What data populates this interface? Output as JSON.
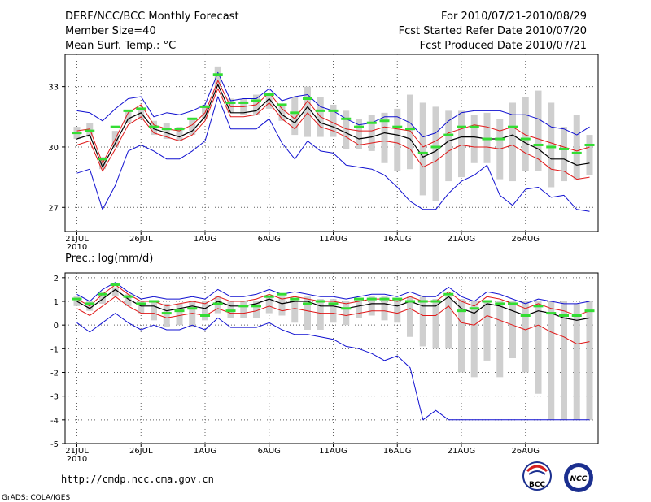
{
  "header": {
    "title": "DERF/NCC/BCC Monthly Forecast",
    "member_size": "Member Size=40",
    "forecast_period": "For 2010/07/21-2010/08/29",
    "started_refer": "Fcst Started Refer Date 2010/07/20",
    "produced_date": "Fcst Produced Date 2010/07/21"
  },
  "footer": {
    "url": "http://cmdp.ncc.cma.gov.cn",
    "grads": "GrADS: COLA/IGES",
    "logo_bcc": "BCC",
    "logo_ncc": "NCC"
  },
  "colors": {
    "envelope": "#1010d0",
    "spread": "#e01818",
    "mean": "#000000",
    "marker": "#33dd33",
    "box": "#cfcfcf",
    "grid": "#606060"
  },
  "chart_data": [
    {
      "type": "line",
      "title": "Mean Surf. Temp.: °C",
      "ylim": [
        25.8,
        34.6
      ],
      "yticks": [
        27,
        30,
        33
      ],
      "ytick_labels": [
        "27",
        "30",
        "33"
      ],
      "xticks": [
        1,
        6,
        11,
        16,
        21,
        26,
        31,
        36
      ],
      "xtick_labels": [
        "21JUL",
        "26JUL",
        "1AUG",
        "6AUG",
        "11AUG",
        "16AUG",
        "21AUG",
        "26AUG"
      ],
      "first_year": "2010",
      "series": [
        {
          "name": "max",
          "values": [
            31.8,
            31.7,
            31.3,
            31.9,
            32.4,
            32.5,
            31.5,
            31.7,
            31.6,
            31.8,
            32.1,
            33.7,
            32.3,
            32.4,
            32.4,
            32.9,
            32.3,
            32.5,
            32.6,
            32.0,
            31.8,
            31.4,
            31.1,
            31.2,
            31.5,
            31.5,
            31.2,
            30.5,
            30.7,
            31.3,
            31.7,
            31.8,
            31.8,
            31.8,
            31.6,
            31.6,
            31.4,
            31.0,
            30.9,
            30.6,
            31.0
          ]
        },
        {
          "name": "upper",
          "values": [
            30.8,
            30.9,
            29.2,
            30.4,
            31.7,
            32.1,
            31.1,
            30.9,
            30.8,
            31.1,
            31.7,
            33.3,
            32.0,
            32.0,
            32.1,
            32.7,
            31.9,
            31.4,
            32.3,
            31.5,
            31.2,
            30.9,
            30.8,
            30.8,
            31.0,
            30.9,
            30.8,
            30.0,
            30.3,
            30.7,
            30.9,
            31.1,
            31.0,
            30.8,
            31.0,
            30.6,
            30.4,
            30.2,
            30.0,
            29.8,
            30.0
          ]
        },
        {
          "name": "mean",
          "values": [
            30.4,
            30.6,
            29.0,
            30.2,
            31.4,
            31.7,
            30.9,
            30.7,
            30.5,
            30.8,
            31.5,
            33.1,
            31.7,
            31.7,
            31.8,
            32.4,
            31.6,
            31.2,
            32.0,
            31.2,
            31.0,
            30.7,
            30.4,
            30.5,
            30.7,
            30.6,
            30.4,
            29.5,
            29.8,
            30.3,
            30.5,
            30.5,
            30.4,
            30.4,
            30.6,
            30.2,
            29.9,
            29.4,
            29.4,
            29.1,
            29.2
          ]
        },
        {
          "name": "lower",
          "values": [
            30.1,
            30.3,
            28.8,
            29.9,
            31.1,
            31.5,
            30.7,
            30.5,
            30.3,
            30.6,
            31.3,
            32.9,
            31.5,
            31.5,
            31.6,
            32.2,
            31.4,
            30.9,
            31.7,
            31.0,
            30.8,
            30.5,
            30.1,
            30.2,
            30.3,
            30.2,
            29.9,
            29.0,
            29.3,
            29.8,
            30.1,
            30.0,
            30.0,
            29.9,
            30.1,
            29.7,
            29.4,
            28.9,
            28.8,
            28.4,
            28.5
          ]
        },
        {
          "name": "min",
          "values": [
            28.7,
            28.9,
            26.9,
            28.1,
            29.8,
            30.1,
            29.8,
            29.4,
            29.4,
            29.8,
            30.3,
            32.5,
            30.9,
            30.9,
            30.9,
            31.4,
            30.2,
            29.4,
            30.3,
            29.8,
            29.7,
            29.1,
            29.0,
            28.9,
            28.6,
            28.0,
            27.3,
            26.9,
            26.9,
            27.7,
            28.3,
            28.6,
            29.1,
            27.6,
            27.1,
            27.9,
            28.0,
            27.5,
            27.6,
            26.9,
            26.8
          ]
        },
        {
          "name": "marker",
          "values": [
            30.7,
            30.8,
            29.4,
            31.0,
            31.8,
            31.9,
            31.0,
            30.9,
            30.9,
            31.4,
            32.0,
            33.6,
            32.2,
            32.2,
            32.3,
            32.6,
            32.1,
            31.7,
            32.4,
            31.8,
            31.8,
            31.4,
            31.0,
            31.2,
            31.3,
            31.0,
            30.9,
            29.7,
            30.0,
            30.6,
            31.0,
            31.0,
            30.4,
            30.4,
            31.0,
            30.4,
            30.1,
            30.0,
            29.9,
            29.7,
            30.1
          ]
        },
        {
          "name": "box_top",
          "values": [
            31.0,
            31.2,
            29.5,
            30.8,
            31.8,
            31.9,
            31.3,
            31.2,
            31.0,
            31.4,
            32.1,
            34.0,
            32.4,
            32.4,
            32.6,
            32.7,
            32.1,
            32.5,
            33.0,
            32.5,
            32.1,
            31.8,
            31.4,
            31.6,
            31.7,
            31.9,
            32.6,
            32.2,
            32.0,
            31.8,
            31.8,
            31.6,
            31.7,
            31.4,
            32.2,
            32.5,
            32.8,
            32.2,
            31.0,
            31.6,
            30.6
          ]
        },
        {
          "name": "box_bottom",
          "values": [
            30.4,
            30.5,
            28.9,
            30.0,
            31.2,
            31.4,
            30.6,
            30.4,
            30.3,
            30.6,
            31.4,
            33.0,
            31.7,
            31.6,
            31.6,
            31.9,
            31.3,
            30.6,
            30.5,
            30.5,
            30.5,
            29.9,
            29.9,
            29.8,
            29.2,
            28.8,
            28.9,
            27.6,
            27.3,
            28.3,
            28.5,
            29.2,
            29.2,
            28.4,
            28.3,
            28.8,
            28.8,
            28.0,
            28.3,
            28.4,
            28.6
          ]
        }
      ]
    },
    {
      "type": "line",
      "title": "Prec.: log(mm/d)",
      "ylim": [
        -5,
        2.2
      ],
      "yticks": [
        -5,
        -4,
        -3,
        -2,
        -1,
        0,
        1,
        2
      ],
      "ytick_labels": [
        "-5",
        "-4",
        "-3",
        "-2",
        "-1",
        "0",
        "1",
        "2"
      ],
      "xticks": [
        1,
        6,
        11,
        16,
        21,
        26,
        31,
        36
      ],
      "xtick_labels": [
        "21JUL",
        "26JUL",
        "1AUG",
        "6AUG",
        "11AUG",
        "16AUG",
        "21AUG",
        "26AUG"
      ],
      "first_year": "2010",
      "series": [
        {
          "name": "max",
          "values": [
            1.3,
            1.0,
            1.5,
            1.8,
            1.4,
            1.1,
            1.2,
            1.1,
            1.1,
            1.2,
            1.1,
            1.5,
            1.2,
            1.2,
            1.3,
            1.5,
            1.3,
            1.4,
            1.3,
            1.2,
            1.2,
            1.1,
            1.2,
            1.3,
            1.3,
            1.2,
            1.4,
            1.2,
            1.2,
            1.6,
            1.2,
            1.0,
            1.4,
            1.3,
            1.1,
            0.9,
            1.1,
            1.0,
            0.9,
            0.9,
            1.0
          ]
        },
        {
          "name": "upper",
          "values": [
            1.1,
            0.8,
            1.3,
            1.7,
            1.3,
            1.0,
            1.0,
            0.8,
            0.9,
            1.0,
            0.9,
            1.2,
            1.0,
            1.0,
            1.1,
            1.3,
            1.1,
            1.2,
            1.1,
            1.0,
            1.0,
            0.9,
            1.0,
            1.1,
            1.1,
            1.0,
            1.2,
            1.0,
            1.0,
            1.4,
            1.0,
            0.8,
            1.2,
            1.1,
            0.9,
            0.7,
            0.9,
            0.7,
            0.6,
            0.4,
            0.6
          ]
        },
        {
          "name": "mean",
          "values": [
            1.0,
            0.7,
            1.1,
            1.5,
            1.1,
            0.8,
            0.8,
            0.6,
            0.7,
            0.8,
            0.7,
            1.0,
            0.8,
            0.8,
            0.9,
            1.1,
            0.9,
            1.0,
            1.0,
            0.8,
            0.8,
            0.7,
            0.8,
            0.9,
            0.9,
            0.8,
            1.0,
            0.8,
            0.8,
            1.2,
            0.7,
            0.5,
            0.9,
            0.8,
            0.6,
            0.4,
            0.6,
            0.5,
            0.3,
            0.2,
            0.3
          ]
        },
        {
          "name": "lower",
          "values": [
            0.7,
            0.4,
            0.8,
            1.2,
            0.8,
            0.5,
            0.5,
            0.3,
            0.4,
            0.5,
            0.4,
            0.7,
            0.5,
            0.5,
            0.6,
            0.8,
            0.6,
            0.7,
            0.6,
            0.5,
            0.5,
            0.4,
            0.5,
            0.6,
            0.6,
            0.5,
            0.7,
            0.4,
            0.4,
            0.8,
            0.1,
            0.0,
            0.4,
            0.2,
            0.0,
            -0.2,
            0.0,
            -0.3,
            -0.5,
            -0.8,
            -0.7
          ]
        },
        {
          "name": "min",
          "values": [
            0.1,
            -0.3,
            0.1,
            0.5,
            0.1,
            -0.2,
            0.0,
            -0.2,
            -0.2,
            0.0,
            -0.2,
            0.3,
            -0.1,
            -0.1,
            -0.1,
            0.1,
            -0.2,
            -0.4,
            -0.4,
            -0.5,
            -0.6,
            -0.9,
            -1.0,
            -1.2,
            -1.5,
            -1.3,
            -1.8,
            -4.0,
            -3.6,
            -4.0,
            -4.0,
            -4.0,
            -4.0,
            -4.0,
            -4.0,
            -4.0,
            -4.0,
            -4.0,
            -4.0,
            -4.0,
            -4.0
          ]
        },
        {
          "name": "marker",
          "values": [
            1.1,
            0.9,
            1.3,
            1.7,
            1.2,
            0.9,
            1.0,
            0.5,
            0.6,
            0.7,
            0.4,
            0.9,
            0.6,
            0.8,
            0.8,
            1.2,
            1.3,
            1.1,
            0.9,
            1.0,
            0.9,
            0.7,
            1.1,
            1.1,
            1.1,
            1.1,
            1.0,
            1.0,
            1.0,
            1.3,
            0.6,
            0.7,
            1.0,
            0.9,
            0.9,
            0.4,
            0.8,
            0.5,
            0.4,
            0.4,
            0.6
          ]
        },
        {
          "name": "box_top",
          "values": [
            1.2,
            1.0,
            1.4,
            1.6,
            1.3,
            1.0,
            1.0,
            0.9,
            0.9,
            1.0,
            1.0,
            1.2,
            1.0,
            1.0,
            1.0,
            1.2,
            1.2,
            1.1,
            1.2,
            1.1,
            1.1,
            1.0,
            1.1,
            1.2,
            1.2,
            1.1,
            1.2,
            1.2,
            1.1,
            1.2,
            1.1,
            1.0,
            1.0,
            1.0,
            1.0,
            1.0,
            1.0,
            1.0,
            1.0,
            0.9,
            1.0
          ]
        },
        {
          "name": "box_bottom",
          "values": [
            0.8,
            0.6,
            0.9,
            1.2,
            0.8,
            0.5,
            0.2,
            -0.1,
            0.0,
            -0.1,
            0.2,
            0.5,
            0.3,
            0.3,
            0.3,
            0.5,
            0.4,
            0.1,
            -0.2,
            -0.2,
            0.1,
            0.0,
            0.3,
            0.4,
            0.2,
            0.1,
            -0.5,
            -0.9,
            -1.0,
            -1.0,
            -2.0,
            -2.2,
            -1.5,
            -2.2,
            -1.4,
            -2.0,
            -2.9,
            -4.0,
            -4.0,
            -4.0,
            -4.0
          ]
        }
      ]
    }
  ]
}
